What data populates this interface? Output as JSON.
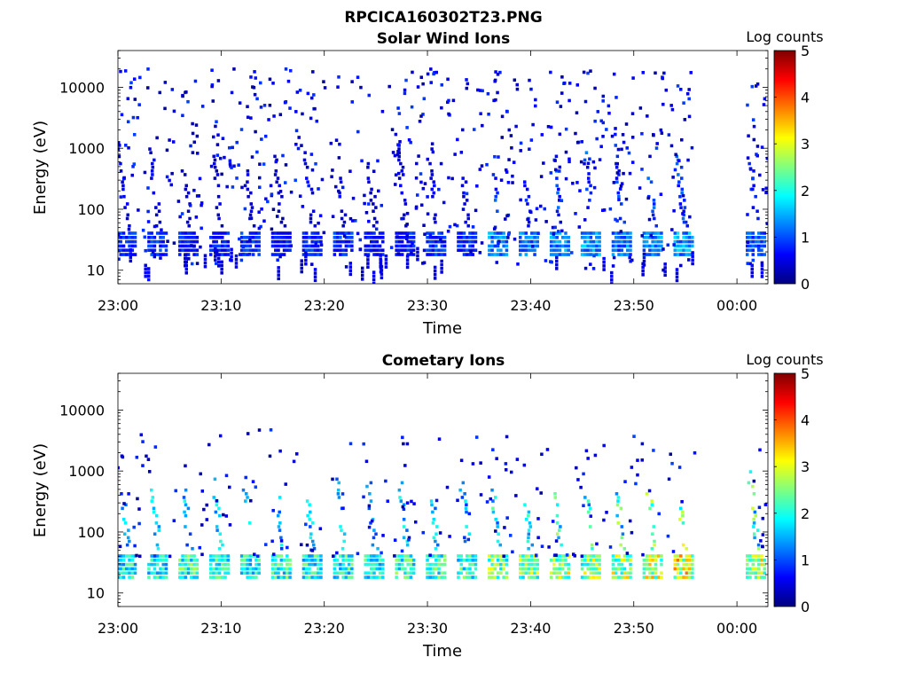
{
  "figure_title": "RPCICA160302T23.PNG",
  "chart_data": [
    {
      "type": "heatmap",
      "title": "Solar Wind Ions",
      "xlabel": "Time",
      "ylabel": "Energy (eV)",
      "x_ticks": [
        "23:00",
        "23:10",
        "23:20",
        "23:30",
        "23:40",
        "23:50",
        "00:00"
      ],
      "xlim": [
        "23:00",
        "00:03"
      ],
      "y_scale": "log",
      "y_ticks": [
        10,
        100,
        1000,
        10000
      ],
      "y_tick_labels": [
        "10",
        "100",
        "1000",
        "10000"
      ],
      "ylim": [
        6,
        40000
      ],
      "colorbar": {
        "label": "Log counts",
        "range": [
          0,
          5
        ],
        "ticks": [
          "0",
          "1",
          "2",
          "3",
          "4",
          "5"
        ],
        "colormap": "jet"
      },
      "data_gap": [
        "23:56",
        "00:01"
      ],
      "burst_times": [
        "23:00",
        "23:03",
        "23:06",
        "23:09",
        "23:12",
        "23:15",
        "23:18",
        "23:21",
        "23:24",
        "23:27",
        "23:30",
        "23:33",
        "23:36",
        "23:39",
        "23:42",
        "23:45",
        "23:48",
        "23:51",
        "23:54",
        "00:01"
      ],
      "band_energy": 30,
      "band_log_counts": [
        1,
        1,
        0.9,
        0.9,
        1,
        0.8,
        1,
        1,
        0.8,
        0.9,
        1,
        1,
        1.5,
        1.4,
        1.5,
        1.6,
        1.4,
        1.5,
        1.6,
        1.2
      ]
    },
    {
      "type": "heatmap",
      "title": "Cometary Ions",
      "xlabel": "Time",
      "ylabel": "Energy (eV)",
      "x_ticks": [
        "23:00",
        "23:10",
        "23:20",
        "23:30",
        "23:40",
        "23:50",
        "00:00"
      ],
      "xlim": [
        "23:00",
        "00:03"
      ],
      "y_scale": "log",
      "y_ticks": [
        10,
        100,
        1000,
        10000
      ],
      "y_tick_labels": [
        "10",
        "100",
        "1000",
        "10000"
      ],
      "ylim": [
        6,
        40000
      ],
      "colorbar": {
        "label": "Log counts",
        "range": [
          0,
          5
        ],
        "ticks": [
          "0",
          "1",
          "2",
          "3",
          "4",
          "5"
        ],
        "colormap": "jet"
      },
      "data_gap": [
        "23:56",
        "00:01"
      ],
      "burst_times": [
        "23:00",
        "23:03",
        "23:06",
        "23:09",
        "23:12",
        "23:15",
        "23:18",
        "23:21",
        "23:24",
        "23:27",
        "23:30",
        "23:33",
        "23:36",
        "23:39",
        "23:42",
        "23:45",
        "23:48",
        "23:51",
        "23:54",
        "00:01"
      ],
      "band_energy": 30,
      "band_log_counts": [
        2.2,
        2.3,
        2.5,
        2.4,
        2.3,
        2.4,
        2.3,
        2.4,
        2.3,
        2.5,
        2.5,
        2.4,
        2.8,
        2.9,
        3.1,
        3.0,
        3.2,
        3.3,
        3.5,
        3.2
      ]
    }
  ]
}
